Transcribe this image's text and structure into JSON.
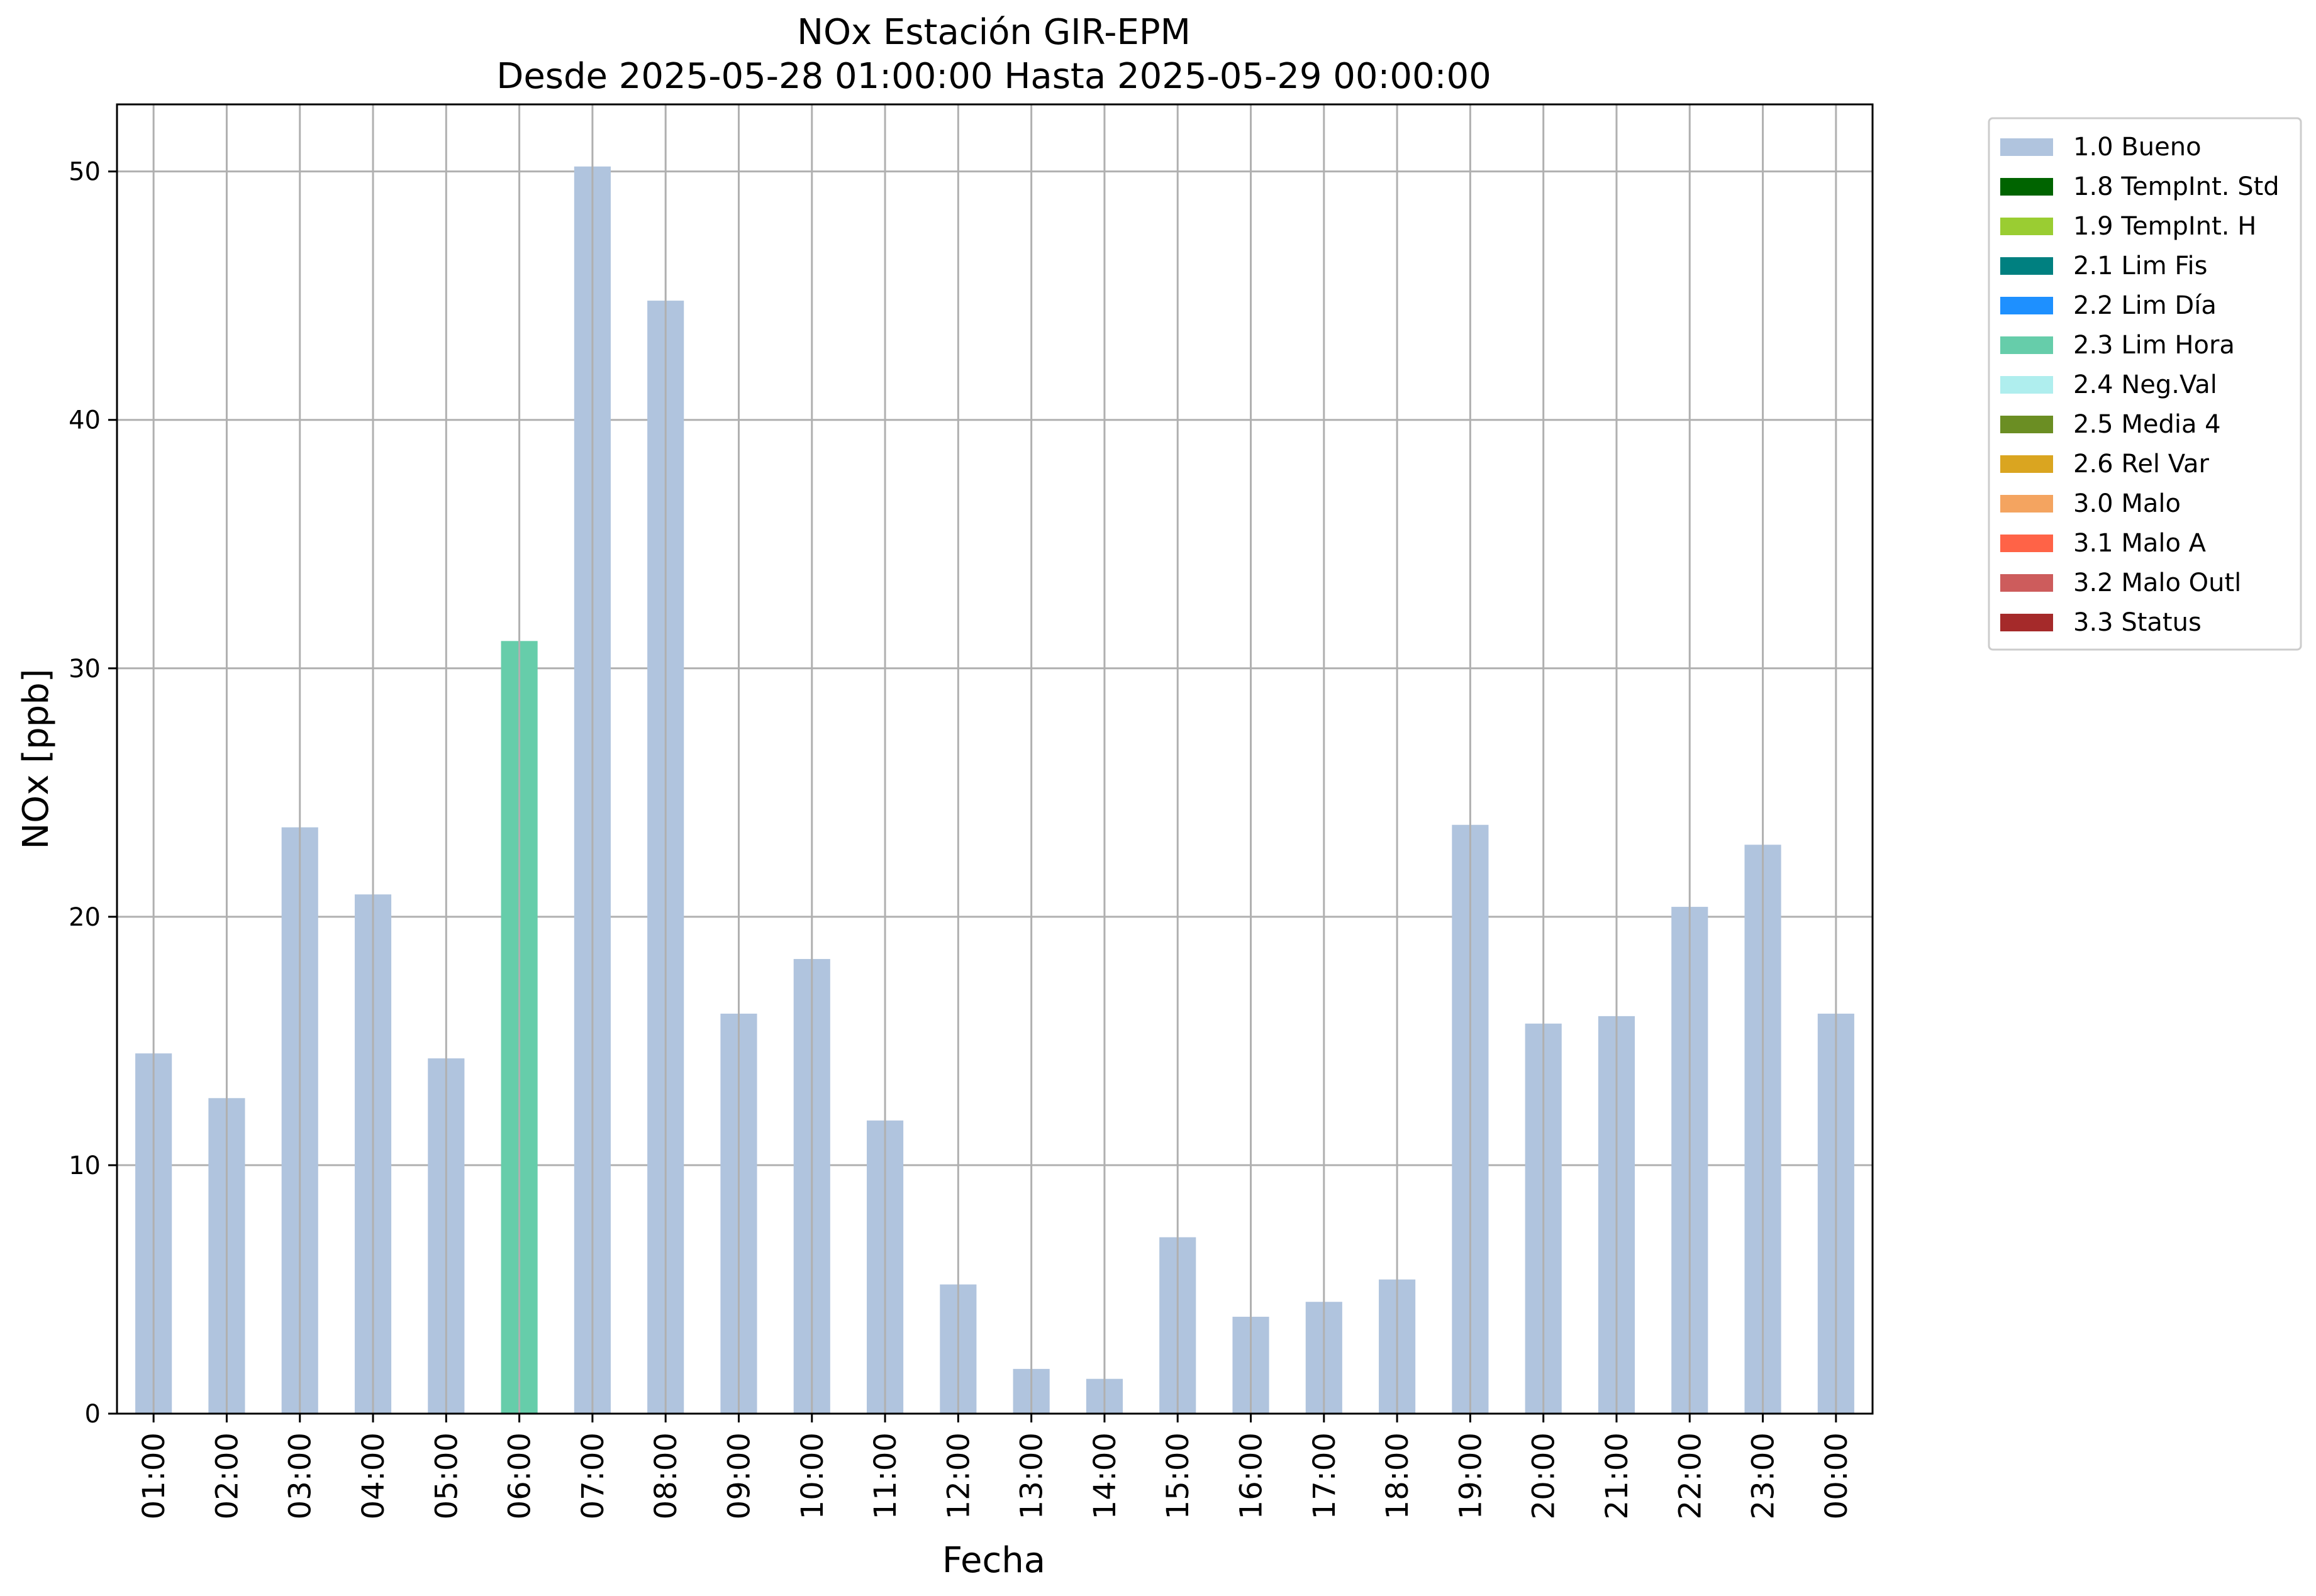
{
  "chart_data": {
    "type": "bar",
    "title": "NOx Estación GIR-EPM",
    "subtitle": "Desde 2025-05-28 01:00:00 Hasta 2025-05-29 00:00:00",
    "xlabel": "Fecha",
    "ylabel": "NOx [ppb]",
    "ylim": [
      0,
      52.7
    ],
    "yticks": [
      0,
      10,
      20,
      30,
      40,
      50
    ],
    "grid": true,
    "legend_position": "outside-top-right",
    "categories": [
      "01:00",
      "02:00",
      "03:00",
      "04:00",
      "05:00",
      "06:00",
      "07:00",
      "08:00",
      "09:00",
      "10:00",
      "11:00",
      "12:00",
      "13:00",
      "14:00",
      "15:00",
      "16:00",
      "17:00",
      "18:00",
      "19:00",
      "20:00",
      "21:00",
      "22:00",
      "23:00",
      "00:00"
    ],
    "values": [
      14.5,
      12.7,
      23.6,
      20.9,
      14.3,
      31.1,
      50.2,
      44.8,
      16.1,
      18.3,
      11.8,
      5.2,
      1.8,
      1.4,
      7.1,
      3.9,
      4.5,
      5.4,
      23.7,
      15.7,
      16.0,
      20.4,
      22.9,
      16.1
    ],
    "flags": [
      "1.0 Bueno",
      "1.0 Bueno",
      "1.0 Bueno",
      "1.0 Bueno",
      "1.0 Bueno",
      "2.3 Lim Hora",
      "1.0 Bueno",
      "1.0 Bueno",
      "1.0 Bueno",
      "1.0 Bueno",
      "1.0 Bueno",
      "1.0 Bueno",
      "1.0 Bueno",
      "1.0 Bueno",
      "1.0 Bueno",
      "1.0 Bueno",
      "1.0 Bueno",
      "1.0 Bueno",
      "1.0 Bueno",
      "1.0 Bueno",
      "1.0 Bueno",
      "1.0 Bueno",
      "1.0 Bueno",
      "1.0 Bueno"
    ],
    "legend": [
      {
        "label": "1.0 Bueno",
        "color": "#b0c4de"
      },
      {
        "label": "1.8 TempInt. Std",
        "color": "#006400"
      },
      {
        "label": "1.9 TempInt. H",
        "color": "#9acd32"
      },
      {
        "label": "2.1 Lim Fis",
        "color": "#008080"
      },
      {
        "label": "2.2 Lim Día",
        "color": "#1e90ff"
      },
      {
        "label": "2.3 Lim Hora",
        "color": "#66cdaa"
      },
      {
        "label": "2.4 Neg.Val",
        "color": "#afeeee"
      },
      {
        "label": "2.5 Media 4",
        "color": "#6b8e23"
      },
      {
        "label": "2.6 Rel Var",
        "color": "#daa520"
      },
      {
        "label": "3.0 Malo",
        "color": "#f4a460"
      },
      {
        "label": "3.1 Malo A",
        "color": "#ff6347"
      },
      {
        "label": "3.2 Malo Outl",
        "color": "#cd5c5c"
      },
      {
        "label": "3.3 Status",
        "color": "#a52a2a"
      }
    ]
  }
}
